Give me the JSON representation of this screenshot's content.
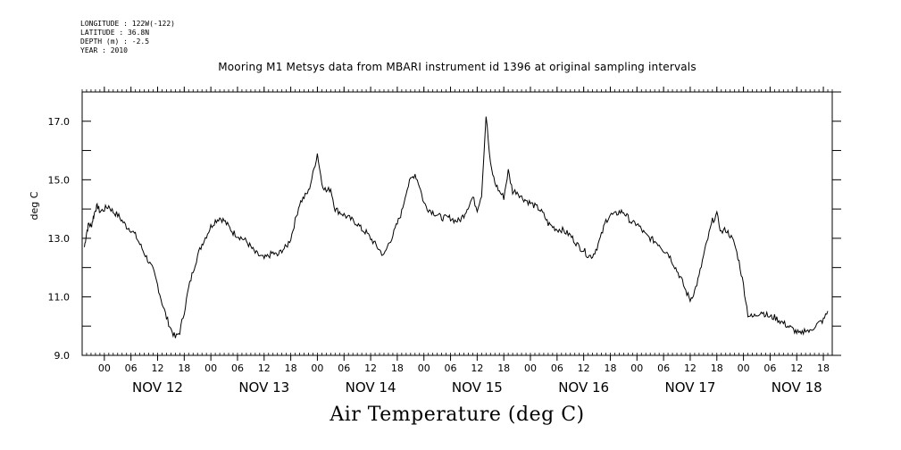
{
  "meta": {
    "longitude": "LONGITUDE : 122W(-122)",
    "latitude": "LATITUDE : 36.8N",
    "depth": "DEPTH (m) : -2.5",
    "year": "YEAR : 2010"
  },
  "chart_data": {
    "type": "line",
    "title": "Mooring M1 Metsys data from MBARI instrument id 1396 at original sampling intervals",
    "xlabel": "Air Temperature (deg C)",
    "ylabel": "deg C",
    "ylim": [
      9.0,
      18.0
    ],
    "yticks": [
      9.0,
      11.0,
      13.0,
      15.0,
      17.0
    ],
    "xlim_hours": [
      -5,
      164
    ],
    "hour_ticks": [
      "00",
      "06",
      "12",
      "18"
    ],
    "day_labels": [
      "NOV 12",
      "NOV 13",
      "NOV 14",
      "NOV 15",
      "NOV 16",
      "NOV 17",
      "NOV 18"
    ],
    "grid": false,
    "series": [
      {
        "values_hours": [
          -4.5,
          -4,
          -3.5,
          -3,
          -2.5,
          -2,
          -1.5,
          -1,
          0,
          1,
          2,
          3,
          4,
          5,
          6,
          7,
          8,
          9,
          10,
          11,
          12,
          13,
          14,
          15,
          16,
          17,
          18,
          19,
          20,
          21,
          22,
          23,
          24,
          25,
          26,
          27,
          28,
          29,
          30,
          31,
          32,
          33,
          34,
          35,
          36,
          37,
          38,
          39,
          40,
          41,
          42,
          43,
          44,
          45,
          46,
          47,
          48,
          49,
          50,
          51,
          52,
          53,
          54,
          55,
          56,
          57,
          58,
          59,
          60,
          61,
          62,
          63,
          64,
          65,
          66,
          67,
          68,
          69,
          70,
          71,
          72,
          73,
          74,
          75,
          76,
          77,
          78,
          79,
          80,
          81,
          82,
          83,
          84,
          85,
          86,
          87,
          88,
          89,
          90,
          91,
          92,
          93,
          94,
          95,
          96,
          97,
          98,
          99,
          100,
          101,
          102,
          103,
          104,
          105,
          106,
          107,
          108,
          109,
          110,
          111,
          112,
          113,
          114,
          115,
          116,
          117,
          118,
          119,
          120,
          121,
          122,
          123,
          124,
          125,
          126,
          127,
          128,
          129,
          130,
          131,
          132,
          133,
          134,
          135,
          136,
          137,
          138,
          139,
          140,
          141,
          142,
          143,
          144,
          145,
          146,
          147,
          148,
          149,
          150,
          151,
          152,
          153,
          154,
          155,
          156,
          157,
          158,
          159,
          160,
          161,
          162,
          163
        ],
        "values": [
          12.7,
          13.2,
          13.5,
          13.4,
          13.7,
          14.0,
          14.1,
          13.9,
          14.0,
          14.1,
          13.9,
          13.8,
          13.6,
          13.4,
          13.3,
          13.1,
          12.8,
          12.5,
          12.2,
          11.9,
          11.4,
          10.8,
          10.3,
          9.9,
          9.6,
          9.8,
          10.5,
          11.3,
          11.9,
          12.4,
          12.8,
          13.1,
          13.4,
          13.6,
          13.7,
          13.6,
          13.4,
          13.2,
          13.1,
          13.0,
          12.9,
          12.7,
          12.5,
          12.4,
          12.3,
          12.4,
          12.5,
          12.4,
          12.6,
          12.7,
          13.0,
          13.6,
          14.2,
          14.4,
          14.6,
          15.2,
          15.9,
          14.9,
          14.6,
          14.7,
          14.0,
          13.9,
          13.8,
          13.7,
          13.6,
          13.5,
          13.3,
          13.2,
          13.0,
          12.8,
          12.6,
          12.4,
          12.8,
          13.1,
          13.5,
          13.9,
          14.6,
          15.0,
          15.2,
          14.8,
          14.2,
          14.0,
          13.9,
          13.8,
          13.7,
          13.7,
          13.7,
          13.6,
          13.6,
          13.8,
          14.1,
          14.4,
          14.0,
          14.5,
          17.2,
          15.5,
          14.9,
          14.6,
          14.4,
          15.3,
          14.6,
          14.6,
          14.4,
          14.3,
          14.2,
          14.1,
          14.0,
          13.8,
          13.5,
          13.4,
          13.3,
          13.3,
          13.2,
          13.1,
          12.9,
          12.7,
          12.6,
          12.4,
          12.4,
          12.7,
          13.1,
          13.6,
          13.8,
          13.8,
          13.9,
          13.9,
          13.7,
          13.5,
          13.5,
          13.3,
          13.1,
          13.0,
          12.9,
          12.8,
          12.6,
          12.5,
          12.2,
          11.9,
          11.6,
          11.2,
          10.9,
          11.2,
          11.7,
          12.4,
          13.0,
          13.6,
          13.8,
          13.2,
          13.3,
          13.1,
          12.8,
          12.2,
          11.4,
          10.4,
          10.3,
          10.4,
          10.5,
          10.4,
          10.3,
          10.3,
          10.2,
          10.1,
          10.0,
          9.9,
          9.8,
          9.7,
          9.9,
          9.8,
          10.0,
          10.1,
          10.2,
          10.5
        ]
      }
    ]
  }
}
